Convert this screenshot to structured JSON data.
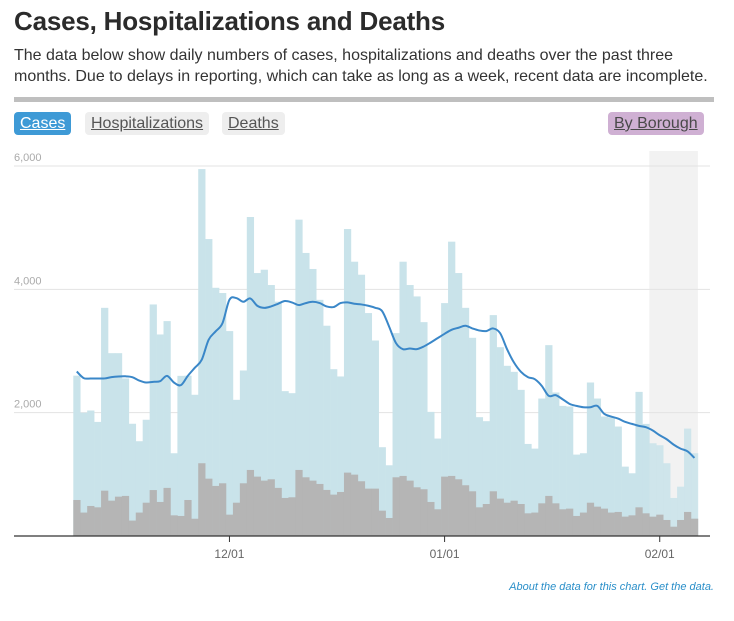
{
  "header": {
    "title": "Cases, Hospitalizations and Deaths",
    "description": "The data below show daily numbers of cases, hospitalizations and deaths over the past three months. Due to delays in reporting, which can take as long as a week, recent data are incomplete."
  },
  "tabs": [
    {
      "label": "Cases",
      "active": true
    },
    {
      "label": "Hospitalizations",
      "active": false
    },
    {
      "label": "Deaths",
      "active": false
    }
  ],
  "borough_button": {
    "label": "By Borough"
  },
  "footer": {
    "about_link": "About the data for this chart.",
    "get_link": "Get the data."
  },
  "colors": {
    "cases_bar": "#c9e3ea",
    "overlay_bar": "#b5b5b5",
    "average_line": "#3a87c8",
    "incomplete_shade": "#f2f2f2",
    "active_tab": "#3e9ad6",
    "borough_button": "#cfb0d3",
    "footer_link": "#2a8fc9"
  },
  "chart_data": {
    "type": "bar",
    "title": "",
    "xlabel": "",
    "ylabel": "",
    "ylim": [
      0,
      6000
    ],
    "yticks": [
      {
        "value": 2000,
        "label": "2,000"
      },
      {
        "value": 4000,
        "label": "4,000"
      },
      {
        "value": 6000,
        "label": "6,000"
      }
    ],
    "grid": true,
    "start_date": "11/09",
    "end_date": "02/06",
    "xticks": [
      {
        "index": 22,
        "label": "12/01"
      },
      {
        "index": 53,
        "label": "01/01"
      },
      {
        "index": 84,
        "label": "02/01"
      }
    ],
    "incomplete_from_index": 83,
    "series": [
      {
        "name": "Cases",
        "kind": "bar",
        "values": [
          2600,
          2000,
          2035,
          1850,
          3700,
          2965,
          2965,
          2555,
          1820,
          1537,
          1885,
          3755,
          3268,
          3485,
          1342,
          2597,
          2600,
          2290,
          5950,
          4815,
          4025,
          3940,
          3323,
          2208,
          2684,
          5173,
          4264,
          4318,
          4070,
          3800,
          2349,
          2316,
          5130,
          4590,
          4330,
          3830,
          3410,
          2705,
          2587,
          4978,
          4448,
          4237,
          3615,
          3170,
          1440,
          1147,
          3290,
          4448,
          4070,
          3885,
          3468,
          2013,
          1580,
          3777,
          4773,
          4264,
          3700,
          3214,
          1927,
          1862,
          3582,
          3062,
          2760,
          2662,
          2370,
          1493,
          1417,
          2229,
          3095,
          2327,
          2110,
          2100,
          1320,
          1342,
          2489,
          2229,
          1937,
          1926,
          1775,
          1125,
          1017,
          2337,
          1818,
          1504,
          1472,
          1180,
          617,
          800,
          1742,
          1342
        ]
      },
      {
        "name": "Overlay (gray)",
        "kind": "bar",
        "values": [
          584,
          380,
          487,
          465,
          735,
          573,
          638,
          650,
          250,
          380,
          540,
          745,
          552,
          780,
          335,
          325,
          584,
          280,
          1180,
          930,
          812,
          855,
          346,
          540,
          855,
          1071,
          963,
          898,
          920,
          780,
          617,
          628,
          1071,
          952,
          898,
          844,
          747,
          671,
          714,
          1028,
          995,
          888,
          768,
          768,
          411,
          292,
          952,
          974,
          898,
          790,
          758,
          552,
          433,
          963,
          974,
          920,
          823,
          725,
          465,
          519,
          725,
          606,
          540,
          573,
          519,
          368,
          380,
          530,
          650,
          530,
          433,
          444,
          325,
          380,
          540,
          476,
          444,
          380,
          390,
          314,
          335,
          465,
          368,
          314,
          346,
          260,
          151,
          260,
          390,
          281
        ]
      },
      {
        "name": "7-day average",
        "kind": "line",
        "values": [
          2667,
          2560,
          2555,
          2555,
          2555,
          2576,
          2587,
          2590,
          2576,
          2521,
          2489,
          2500,
          2510,
          2597,
          2489,
          2446,
          2597,
          2727,
          2857,
          3182,
          3317,
          3452,
          3831,
          3858,
          3798,
          3853,
          3734,
          3700,
          3723,
          3766,
          3810,
          3788,
          3745,
          3777,
          3798,
          3777,
          3723,
          3712,
          3777,
          3788,
          3766,
          3755,
          3734,
          3701,
          3647,
          3398,
          3128,
          3030,
          3041,
          3030,
          3073,
          3138,
          3209,
          3279,
          3344,
          3377,
          3409,
          3366,
          3333,
          3323,
          3366,
          3290,
          3030,
          2813,
          2662,
          2576,
          2543,
          2435,
          2273,
          2284,
          2218,
          2143,
          2110,
          2088,
          2088,
          2110,
          1981,
          1937,
          1905,
          1851,
          1818,
          1786,
          1764,
          1710,
          1634,
          1569,
          1482,
          1417,
          1374,
          1266
        ]
      }
    ]
  }
}
